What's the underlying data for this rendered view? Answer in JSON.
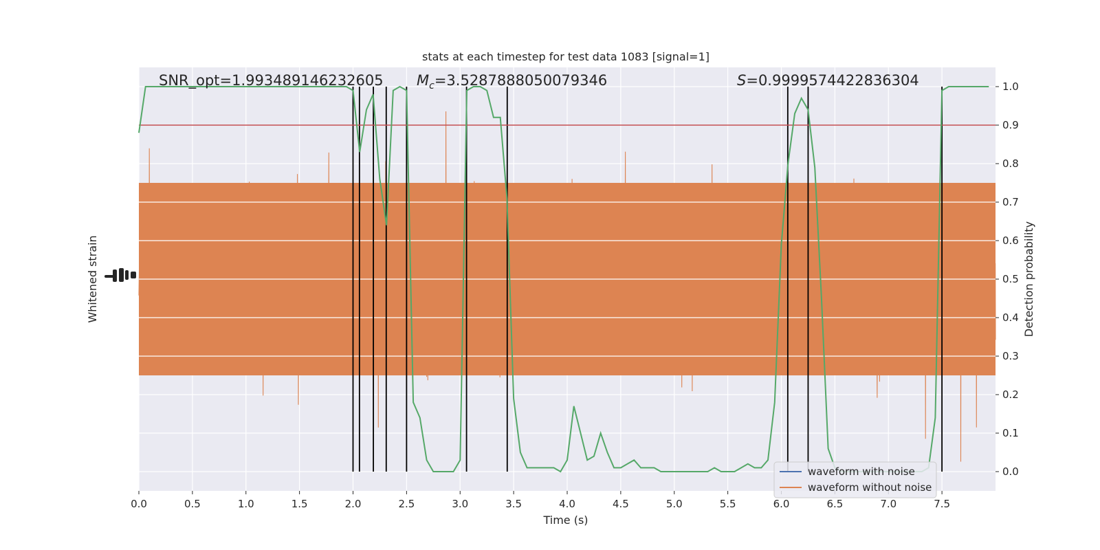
{
  "chart_data": {
    "type": "line",
    "title": "stats at each timestep for test data 1083 [signal=1]",
    "xlabel": "Time (s)",
    "ylabel_left": "Whitened strain",
    "ylabel_right": "Detection probability",
    "xlim": [
      0,
      8
    ],
    "ylim_right": [
      -0.05,
      1.05
    ],
    "x_ticks": [
      0.0,
      0.5,
      1.0,
      1.5,
      2.0,
      2.5,
      3.0,
      3.5,
      4.0,
      4.5,
      5.0,
      5.5,
      6.0,
      6.5,
      7.0,
      7.5
    ],
    "x_tick_labels": [
      "0.0",
      "0.5",
      "1.0",
      "1.5",
      "2.0",
      "2.5",
      "3.0",
      "3.5",
      "4.0",
      "4.5",
      "5.0",
      "5.5",
      "6.0",
      "6.5",
      "7.0",
      "7.5"
    ],
    "y_right_ticks": [
      0.0,
      0.1,
      0.2,
      0.3,
      0.4,
      0.5,
      0.6,
      0.7,
      0.8,
      0.9,
      1.0
    ],
    "y_right_tick_labels": [
      "0.0",
      "0.1",
      "0.2",
      "0.3",
      "0.4",
      "0.5",
      "0.6",
      "0.7",
      "0.8",
      "0.9",
      "1.0"
    ],
    "grid": true,
    "annotations": [
      {
        "id": "snr",
        "text": "SNR_opt=1.993489146232605"
      },
      {
        "id": "mc",
        "prefix": "M",
        "sub": "c",
        "text": "=3.5287888050079346"
      },
      {
        "id": "s",
        "prefix": "S",
        "text": "=0.9999574422836304"
      }
    ],
    "threshold": 0.9,
    "detection_times": [
      2.0,
      2.06,
      2.19,
      2.31,
      2.5,
      3.06,
      3.44,
      6.06,
      6.25,
      7.5
    ],
    "legend": {
      "placement": "lower-right",
      "entries": [
        {
          "label": "waveform with noise",
          "color": "#4c72b0"
        },
        {
          "label": "waveform without noise",
          "color": "#dd8452"
        }
      ]
    },
    "series": [
      {
        "name": "detection probability",
        "color": "#55a868",
        "x": [
          0.0,
          0.0625,
          0.125,
          0.1875,
          0.25,
          0.3125,
          0.375,
          0.4375,
          0.5,
          0.5625,
          0.625,
          0.6875,
          0.75,
          0.8125,
          0.875,
          0.9375,
          1.0,
          1.0625,
          1.125,
          1.1875,
          1.25,
          1.3125,
          1.375,
          1.4375,
          1.5,
          1.5625,
          1.625,
          1.6875,
          1.75,
          1.8125,
          1.875,
          1.9375,
          2.0,
          2.0625,
          2.125,
          2.1875,
          2.25,
          2.3125,
          2.375,
          2.4375,
          2.5,
          2.5625,
          2.625,
          2.6875,
          2.75,
          2.8125,
          2.875,
          2.9375,
          3.0,
          3.0625,
          3.125,
          3.1875,
          3.25,
          3.3125,
          3.375,
          3.4375,
          3.5,
          3.5625,
          3.625,
          3.6875,
          3.75,
          3.8125,
          3.875,
          3.9375,
          4.0,
          4.0625,
          4.125,
          4.1875,
          4.25,
          4.3125,
          4.375,
          4.4375,
          4.5,
          4.5625,
          4.625,
          4.6875,
          4.75,
          4.8125,
          4.875,
          4.9375,
          5.0,
          5.0625,
          5.125,
          5.1875,
          5.25,
          5.3125,
          5.375,
          5.4375,
          5.5,
          5.5625,
          5.625,
          5.6875,
          5.75,
          5.8125,
          5.875,
          5.9375,
          6.0,
          6.0625,
          6.125,
          6.1875,
          6.25,
          6.3125,
          6.375,
          6.4375,
          6.5,
          6.5625,
          6.625,
          6.6875,
          6.75,
          6.8125,
          6.875,
          6.9375,
          7.0,
          7.0625,
          7.125,
          7.1875,
          7.25,
          7.3125,
          7.375,
          7.4375,
          7.5,
          7.5625,
          7.625,
          7.6875,
          7.75,
          7.8125,
          7.875,
          7.9375
        ],
        "y": [
          0.88,
          1.0,
          1.0,
          1.0,
          1.0,
          1.0,
          1.0,
          1.0,
          1.0,
          1.0,
          1.0,
          1.0,
          1.0,
          1.0,
          1.0,
          1.0,
          1.0,
          1.0,
          1.0,
          1.0,
          1.0,
          1.0,
          1.0,
          1.0,
          1.0,
          1.0,
          1.0,
          1.0,
          1.0,
          1.0,
          1.0,
          1.0,
          0.99,
          0.83,
          0.94,
          0.98,
          0.76,
          0.64,
          0.99,
          1.0,
          0.99,
          0.18,
          0.14,
          0.03,
          0.0,
          0.0,
          0.0,
          0.0,
          0.03,
          0.99,
          1.0,
          1.0,
          0.99,
          0.92,
          0.92,
          0.71,
          0.19,
          0.05,
          0.01,
          0.01,
          0.01,
          0.01,
          0.01,
          0.0,
          0.03,
          0.17,
          0.1,
          0.03,
          0.04,
          0.1,
          0.05,
          0.01,
          0.01,
          0.02,
          0.03,
          0.01,
          0.01,
          0.01,
          0.0,
          0.0,
          0.0,
          0.0,
          0.0,
          0.0,
          0.0,
          0.0,
          0.01,
          0.0,
          0.0,
          0.0,
          0.01,
          0.02,
          0.01,
          0.01,
          0.03,
          0.18,
          0.59,
          0.8,
          0.93,
          0.97,
          0.94,
          0.79,
          0.45,
          0.06,
          0.01,
          0.0,
          0.0,
          0.0,
          0.0,
          0.0,
          0.0,
          0.0,
          0.0,
          0.0,
          0.0,
          0.0,
          0.0,
          0.0,
          0.01,
          0.14,
          0.99,
          1.0,
          1.0,
          1.0,
          1.0,
          1.0,
          1.0,
          1.0
        ]
      }
    ],
    "whitened_strain": {
      "name": "waveform without noise",
      "color": "#dd8452",
      "dense_band": [
        0.25,
        0.75
      ],
      "note": "dense noise trace; plotted procedurally within its band"
    }
  }
}
